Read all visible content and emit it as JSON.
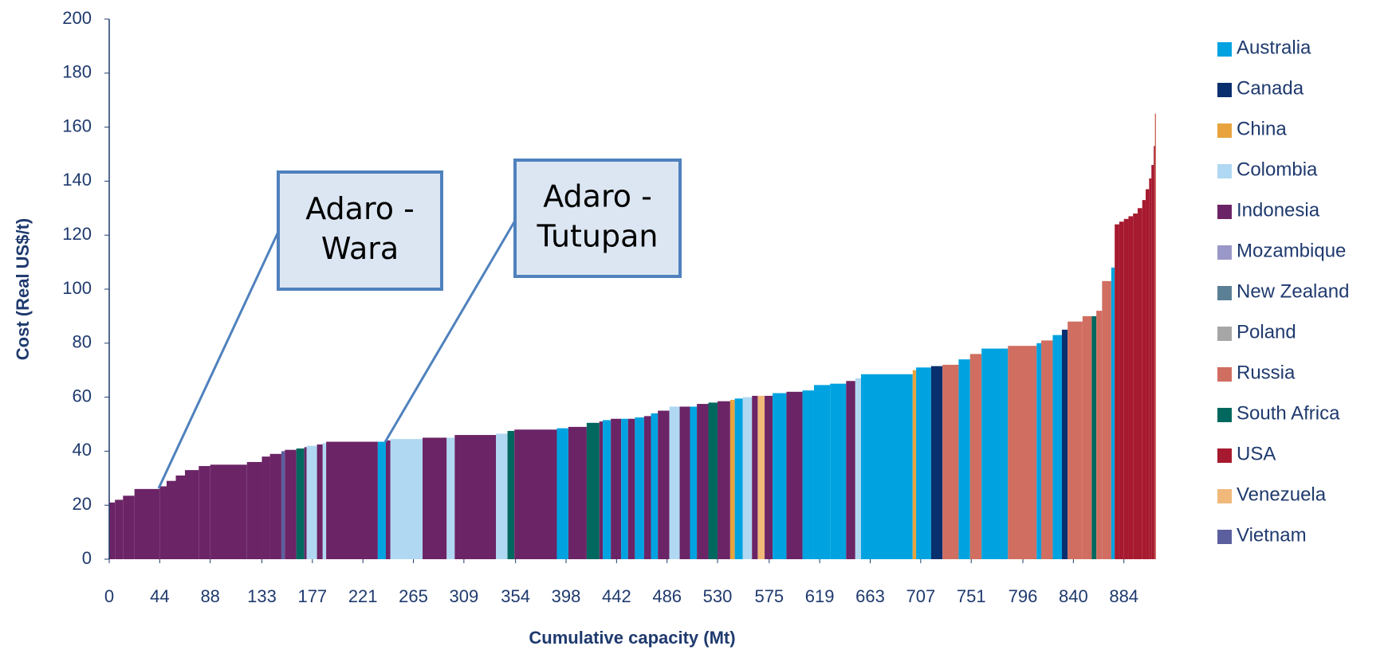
{
  "chart_data": {
    "type": "cost-curve",
    "ylabel": "Cost (Real US$/t)",
    "xlabel": "Cumulative capacity (Mt)",
    "xlim": [
      0,
      912
    ],
    "ylim": [
      0,
      200
    ],
    "yticks": [
      0,
      20,
      40,
      60,
      80,
      100,
      120,
      140,
      160,
      180,
      200
    ],
    "xticks": [
      0,
      44,
      88,
      133,
      177,
      221,
      265,
      309,
      354,
      398,
      442,
      486,
      530,
      575,
      619,
      663,
      707,
      751,
      796,
      840,
      884
    ],
    "legend": [
      {
        "name": "Australia",
        "color": "#00a3e0"
      },
      {
        "name": "Canada",
        "color": "#0a2f6e"
      },
      {
        "name": "China",
        "color": "#e8a33d"
      },
      {
        "name": "Colombia",
        "color": "#b0d8f2"
      },
      {
        "name": "Indonesia",
        "color": "#6b2466"
      },
      {
        "name": "Mozambique",
        "color": "#9a98c8"
      },
      {
        "name": "New Zealand",
        "color": "#5b7f95"
      },
      {
        "name": "Poland",
        "color": "#a6a6a6"
      },
      {
        "name": "Russia",
        "color": "#d06e61"
      },
      {
        "name": "South Africa",
        "color": "#00685e"
      },
      {
        "name": "USA",
        "color": "#a6192e"
      },
      {
        "name": "Venezuela",
        "color": "#f0b97a"
      },
      {
        "name": "Vietnam",
        "color": "#5b5f9e"
      }
    ],
    "segments": [
      {
        "x": [
          0,
          5
        ],
        "value": 21,
        "country": "Indonesia"
      },
      {
        "x": [
          5,
          12
        ],
        "value": 22,
        "country": "Indonesia"
      },
      {
        "x": [
          12,
          22
        ],
        "value": 23.5,
        "country": "Indonesia"
      },
      {
        "x": [
          22,
          44
        ],
        "value": 26,
        "country": "Indonesia"
      },
      {
        "x": [
          44,
          50
        ],
        "value": 27,
        "country": "Indonesia"
      },
      {
        "x": [
          50,
          58
        ],
        "value": 29,
        "country": "Indonesia"
      },
      {
        "x": [
          58,
          66
        ],
        "value": 31,
        "country": "Indonesia"
      },
      {
        "x": [
          66,
          78
        ],
        "value": 33,
        "country": "Indonesia"
      },
      {
        "x": [
          78,
          88
        ],
        "value": 34.5,
        "country": "Indonesia"
      },
      {
        "x": [
          88,
          120
        ],
        "value": 35,
        "country": "Indonesia"
      },
      {
        "x": [
          120,
          133
        ],
        "value": 36,
        "country": "Indonesia"
      },
      {
        "x": [
          133,
          140
        ],
        "value": 38,
        "country": "Indonesia"
      },
      {
        "x": [
          140,
          150
        ],
        "value": 39,
        "country": "Indonesia"
      },
      {
        "x": [
          150,
          153
        ],
        "value": 40,
        "country": "Vietnam"
      },
      {
        "x": [
          153,
          163
        ],
        "value": 40.5,
        "country": "Indonesia"
      },
      {
        "x": [
          163,
          170
        ],
        "value": 41,
        "country": "South Africa"
      },
      {
        "x": [
          170,
          172
        ],
        "value": 41.5,
        "country": "Indonesia"
      },
      {
        "x": [
          172,
          181
        ],
        "value": 42,
        "country": "Colombia"
      },
      {
        "x": [
          181,
          186
        ],
        "value": 42.5,
        "country": "Indonesia"
      },
      {
        "x": [
          186,
          189
        ],
        "value": 43,
        "country": "Colombia"
      },
      {
        "x": [
          189,
          234
        ],
        "value": 43.5,
        "country": "Indonesia"
      },
      {
        "x": [
          234,
          241
        ],
        "value": 43.5,
        "country": "Australia"
      },
      {
        "x": [
          241,
          245
        ],
        "value": 44,
        "country": "Indonesia"
      },
      {
        "x": [
          245,
          273
        ],
        "value": 44.5,
        "country": "Colombia"
      },
      {
        "x": [
          273,
          294
        ],
        "value": 45,
        "country": "Indonesia"
      },
      {
        "x": [
          294,
          301
        ],
        "value": 45,
        "country": "Colombia"
      },
      {
        "x": [
          301,
          337
        ],
        "value": 46,
        "country": "Indonesia"
      },
      {
        "x": [
          337,
          347
        ],
        "value": 46.5,
        "country": "Colombia"
      },
      {
        "x": [
          347,
          353
        ],
        "value": 47.5,
        "country": "South Africa"
      },
      {
        "x": [
          353,
          390
        ],
        "value": 48,
        "country": "Indonesia"
      },
      {
        "x": [
          390,
          400
        ],
        "value": 48.5,
        "country": "Australia"
      },
      {
        "x": [
          400,
          416
        ],
        "value": 49,
        "country": "Indonesia"
      },
      {
        "x": [
          416,
          427
        ],
        "value": 50.5,
        "country": "South Africa"
      },
      {
        "x": [
          427,
          430
        ],
        "value": 51,
        "country": "Indonesia"
      },
      {
        "x": [
          430,
          437
        ],
        "value": 51.5,
        "country": "Australia"
      },
      {
        "x": [
          437,
          446
        ],
        "value": 52,
        "country": "Indonesia"
      },
      {
        "x": [
          446,
          452
        ],
        "value": 52,
        "country": "Australia"
      },
      {
        "x": [
          452,
          458
        ],
        "value": 52,
        "country": "Indonesia"
      },
      {
        "x": [
          458,
          466
        ],
        "value": 52.5,
        "country": "Australia"
      },
      {
        "x": [
          466,
          472
        ],
        "value": 53,
        "country": "Indonesia"
      },
      {
        "x": [
          472,
          478
        ],
        "value": 54,
        "country": "Australia"
      },
      {
        "x": [
          478,
          488
        ],
        "value": 55,
        "country": "Indonesia"
      },
      {
        "x": [
          488,
          497
        ],
        "value": 56.5,
        "country": "Colombia"
      },
      {
        "x": [
          497,
          506
        ],
        "value": 56.5,
        "country": "Indonesia"
      },
      {
        "x": [
          506,
          512
        ],
        "value": 56.5,
        "country": "Australia"
      },
      {
        "x": [
          512,
          522
        ],
        "value": 57.5,
        "country": "Indonesia"
      },
      {
        "x": [
          522,
          530
        ],
        "value": 58,
        "country": "South Africa"
      },
      {
        "x": [
          530,
          541
        ],
        "value": 58.5,
        "country": "Indonesia"
      },
      {
        "x": [
          541,
          545
        ],
        "value": 59,
        "country": "China"
      },
      {
        "x": [
          545,
          552
        ],
        "value": 59.5,
        "country": "Australia"
      },
      {
        "x": [
          552,
          560
        ],
        "value": 60,
        "country": "Colombia"
      },
      {
        "x": [
          560,
          565
        ],
        "value": 60.5,
        "country": "Indonesia"
      },
      {
        "x": [
          565,
          571
        ],
        "value": 60.5,
        "country": "Venezuela"
      },
      {
        "x": [
          571,
          578
        ],
        "value": 60.5,
        "country": "Indonesia"
      },
      {
        "x": [
          578,
          590
        ],
        "value": 61.5,
        "country": "Australia"
      },
      {
        "x": [
          590,
          604
        ],
        "value": 62,
        "country": "Indonesia"
      },
      {
        "x": [
          604,
          614
        ],
        "value": 62.5,
        "country": "Australia"
      },
      {
        "x": [
          614,
          628
        ],
        "value": 64.5,
        "country": "Australia"
      },
      {
        "x": [
          628,
          642
        ],
        "value": 65,
        "country": "Australia"
      },
      {
        "x": [
          642,
          650
        ],
        "value": 66,
        "country": "Indonesia"
      },
      {
        "x": [
          650,
          655
        ],
        "value": 67,
        "country": "Colombia"
      },
      {
        "x": [
          655,
          700
        ],
        "value": 68.5,
        "country": "Australia"
      },
      {
        "x": [
          700,
          703
        ],
        "value": 70,
        "country": "China"
      },
      {
        "x": [
          703,
          716
        ],
        "value": 71,
        "country": "Australia"
      },
      {
        "x": [
          716,
          726
        ],
        "value": 71.5,
        "country": "Canada"
      },
      {
        "x": [
          726,
          740
        ],
        "value": 72,
        "country": "Russia"
      },
      {
        "x": [
          740,
          750
        ],
        "value": 74,
        "country": "Australia"
      },
      {
        "x": [
          750,
          760
        ],
        "value": 76,
        "country": "Russia"
      },
      {
        "x": [
          760,
          783
        ],
        "value": 78,
        "country": "Australia"
      },
      {
        "x": [
          783,
          808
        ],
        "value": 79,
        "country": "Russia"
      },
      {
        "x": [
          808,
          812
        ],
        "value": 80,
        "country": "Australia"
      },
      {
        "x": [
          812,
          822
        ],
        "value": 81,
        "country": "Russia"
      },
      {
        "x": [
          822,
          830
        ],
        "value": 83,
        "country": "Australia"
      },
      {
        "x": [
          830,
          835
        ],
        "value": 85,
        "country": "Canada"
      },
      {
        "x": [
          835,
          848
        ],
        "value": 88,
        "country": "Russia"
      },
      {
        "x": [
          848,
          856
        ],
        "value": 90,
        "country": "Russia"
      },
      {
        "x": [
          856,
          860
        ],
        "value": 90,
        "country": "South Africa"
      },
      {
        "x": [
          860,
          865
        ],
        "value": 92,
        "country": "Russia"
      },
      {
        "x": [
          865,
          873
        ],
        "value": 103,
        "country": "Russia"
      },
      {
        "x": [
          873,
          876
        ],
        "value": 108,
        "country": "Australia"
      },
      {
        "x": [
          876,
          880
        ],
        "value": 124,
        "country": "USA"
      },
      {
        "x": [
          880,
          884
        ],
        "value": 125,
        "country": "USA"
      },
      {
        "x": [
          884,
          888
        ],
        "value": 126,
        "country": "USA"
      },
      {
        "x": [
          888,
          892
        ],
        "value": 127,
        "country": "USA"
      },
      {
        "x": [
          892,
          896
        ],
        "value": 128,
        "country": "USA"
      },
      {
        "x": [
          896,
          900
        ],
        "value": 130,
        "country": "USA"
      },
      {
        "x": [
          900,
          903
        ],
        "value": 133,
        "country": "USA"
      },
      {
        "x": [
          903,
          906
        ],
        "value": 137,
        "country": "USA"
      },
      {
        "x": [
          906,
          908
        ],
        "value": 141,
        "country": "USA"
      },
      {
        "x": [
          908,
          910
        ],
        "value": 146,
        "country": "USA"
      },
      {
        "x": [
          910,
          911
        ],
        "value": 153,
        "country": "USA"
      },
      {
        "x": [
          911,
          912
        ],
        "value": 165,
        "country": "Russia"
      }
    ],
    "annotations": [
      {
        "lines": [
          "Adaro -",
          "Wara"
        ]
      },
      {
        "lines": [
          "Adaro -",
          "Tutupan"
        ]
      }
    ]
  }
}
